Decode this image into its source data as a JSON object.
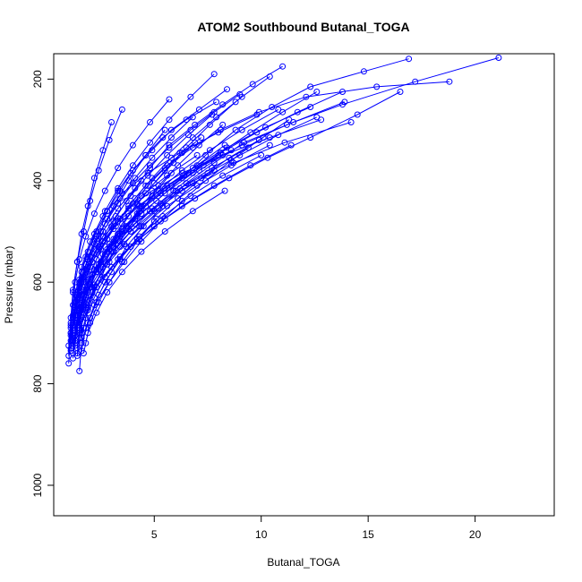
{
  "chart_data": {
    "type": "line",
    "title": "ATOM2 Southbound Butanal_TOGA",
    "xlabel": "Butanal_TOGA",
    "ylabel": "Pressure (mbar)",
    "xlim": [
      0.3,
      23.7
    ],
    "ylim": [
      1060,
      150
    ],
    "y_reversed": true,
    "x_ticks": [
      5,
      10,
      15,
      20
    ],
    "y_ticks": [
      200,
      400,
      600,
      800,
      1000
    ],
    "grid": false,
    "legend": "none",
    "marker": "open-circle",
    "series_color": "#0000ff",
    "series": [
      {
        "x": [
          1.2,
          1.3,
          1.6,
          2.1,
          2.9,
          3.4,
          4.2,
          5.1,
          6.3,
          7.4,
          8.8,
          10.5,
          12.3,
          14.8,
          16.9
        ],
        "y": [
          750,
          705,
          660,
          610,
          560,
          505,
          470,
          440,
          395,
          350,
          300,
          255,
          215,
          185,
          160
        ]
      },
      {
        "x": [
          1.1,
          1.2,
          1.5,
          1.7,
          2.2,
          2.6,
          3.3,
          4.1,
          4.8,
          5.7,
          6.9,
          8.2,
          9.6,
          11.0
        ],
        "y": [
          735,
          690,
          640,
          595,
          545,
          500,
          455,
          415,
          375,
          330,
          290,
          250,
          210,
          175
        ]
      },
      {
        "x": [
          1.3,
          1.4,
          1.8,
          2.0,
          2.5,
          3.1,
          3.8,
          4.6,
          5.6,
          6.8,
          8.1,
          9.9,
          12.1,
          15.4,
          18.8
        ],
        "y": [
          720,
          680,
          630,
          585,
          535,
          495,
          450,
          410,
          370,
          335,
          300,
          265,
          235,
          215,
          205
        ]
      },
      {
        "x": [
          1.0,
          1.1,
          1.3,
          1.6,
          1.9,
          2.3,
          2.8,
          3.4,
          4.0,
          4.9,
          5.8,
          7.1,
          8.4
        ],
        "y": [
          760,
          700,
          650,
          600,
          550,
          510,
          460,
          420,
          380,
          340,
          300,
          260,
          220
        ]
      },
      {
        "x": [
          1.5,
          1.6,
          2.0,
          2.4,
          3.0,
          3.7,
          4.5,
          5.4,
          6.5,
          7.8,
          9.2,
          11.5,
          13.8,
          17.2,
          21.1
        ],
        "y": [
          775,
          720,
          670,
          625,
          580,
          530,
          490,
          450,
          405,
          365,
          325,
          285,
          250,
          205,
          158
        ]
      },
      {
        "x": [
          1.2,
          1.4,
          1.7,
          2.1,
          2.7,
          3.3,
          4.0,
          4.7,
          5.5,
          6.3,
          7.2
        ],
        "y": [
          690,
          645,
          600,
          560,
          520,
          480,
          445,
          410,
          375,
          345,
          315
        ]
      },
      {
        "x": [
          1.1,
          1.3,
          1.6,
          2.0,
          2.6,
          3.5,
          4.7,
          6.2,
          8.0,
          9.8
        ],
        "y": [
          685,
          625,
          570,
          520,
          470,
          425,
          385,
          345,
          305,
          270
        ]
      },
      {
        "x": [
          1.4,
          1.5,
          1.9,
          2.2,
          2.8,
          3.6,
          4.3,
          5.2,
          6.0,
          7.5,
          9.0,
          10.8,
          12.6
        ],
        "y": [
          740,
          695,
          650,
          605,
          565,
          525,
          490,
          455,
          420,
          385,
          350,
          310,
          275
        ]
      },
      {
        "x": [
          1.0,
          1.1,
          1.2,
          1.4,
          1.7,
          2.0,
          2.4,
          2.9,
          3.5
        ],
        "y": [
          745,
          680,
          620,
          560,
          500,
          440,
          380,
          320,
          260
        ]
      },
      {
        "x": [
          1.3,
          1.5,
          1.8,
          2.3,
          2.9,
          3.7,
          4.6,
          5.8,
          7.3,
          9.1,
          11.2,
          13.9
        ],
        "y": [
          700,
          655,
          615,
          575,
          530,
          490,
          450,
          410,
          370,
          330,
          290,
          245
        ]
      },
      {
        "x": [
          1.6,
          1.8,
          2.2,
          2.7,
          3.4,
          4.2,
          5.1,
          6.1,
          7.2,
          8.5,
          10.1
        ],
        "y": [
          735,
          690,
          645,
          600,
          555,
          515,
          475,
          435,
          395,
          355,
          315
        ]
      },
      {
        "x": [
          1.1,
          1.2,
          1.4,
          1.6,
          1.9,
          2.3,
          2.8,
          3.3,
          3.9,
          4.6,
          5.4,
          6.5,
          7.9
        ],
        "y": [
          715,
          670,
          625,
          580,
          540,
          500,
          460,
          420,
          385,
          350,
          315,
          280,
          245
        ]
      },
      {
        "x": [
          1.2,
          1.3,
          1.5,
          1.9,
          2.4,
          3.0,
          3.8,
          4.9,
          6.3,
          8.2,
          10.4,
          12.8
        ],
        "y": [
          690,
          650,
          610,
          570,
          530,
          490,
          455,
          420,
          385,
          350,
          315,
          280
        ]
      },
      {
        "x": [
          1.5,
          1.7,
          2.1,
          2.5,
          3.1,
          3.9,
          4.8,
          5.9,
          7.1,
          8.6
        ],
        "y": [
          710,
          665,
          620,
          580,
          540,
          500,
          460,
          420,
          380,
          340
        ]
      },
      {
        "x": [
          1.3,
          1.4,
          1.7,
          2.0,
          2.5,
          3.2,
          4.1,
          5.3,
          6.8,
          8.7,
          11.1,
          14.2
        ],
        "y": [
          725,
          685,
          645,
          605,
          565,
          525,
          485,
          445,
          405,
          365,
          325,
          285
        ]
      },
      {
        "x": [
          1.4,
          1.5,
          1.8,
          2.1,
          2.6,
          3.1,
          3.7,
          4.4
        ],
        "y": [
          680,
          640,
          600,
          560,
          520,
          480,
          440,
          400
        ]
      },
      {
        "x": [
          1.2,
          1.4,
          1.8,
          2.4,
          3.2,
          4.3,
          5.6,
          7.0,
          8.3
        ],
        "y": [
          665,
          620,
          575,
          530,
          490,
          450,
          410,
          370,
          330
        ]
      },
      {
        "x": [
          1.1,
          1.3,
          1.6,
          2.1,
          2.7,
          3.5,
          4.4,
          5.5,
          6.8,
          8.1,
          9.5,
          11.0,
          12.6
        ],
        "y": [
          705,
          665,
          625,
          585,
          545,
          505,
          465,
          425,
          385,
          345,
          305,
          265,
          225
        ]
      },
      {
        "x": [
          1.3,
          1.5,
          1.9,
          2.6,
          3.6,
          4.9,
          6.4,
          8.0
        ],
        "y": [
          650,
          600,
          555,
          510,
          470,
          430,
          390,
          350
        ]
      },
      {
        "x": [
          1.6,
          1.9,
          2.3,
          2.9,
          3.6,
          4.4,
          5.3,
          6.3,
          7.4,
          8.6,
          9.9,
          11.3
        ],
        "y": [
          720,
          680,
          640,
          600,
          560,
          520,
          480,
          440,
          400,
          360,
          320,
          280
        ]
      },
      {
        "x": [
          1.2,
          1.3,
          1.5,
          1.8,
          2.2,
          2.7,
          3.3,
          4.0,
          4.8,
          5.7,
          6.7,
          7.8,
          9.0
        ],
        "y": [
          695,
          650,
          605,
          565,
          525,
          485,
          445,
          405,
          370,
          335,
          300,
          265,
          230
        ]
      },
      {
        "x": [
          1.4,
          1.6,
          2.0,
          2.6,
          3.4,
          4.4,
          5.6,
          7.0,
          8.6,
          10.4
        ],
        "y": [
          690,
          650,
          610,
          570,
          530,
          490,
          450,
          410,
          370,
          330
        ]
      },
      {
        "x": [
          1.1,
          1.2,
          1.5,
          2.0,
          2.6,
          3.4,
          4.4,
          5.6,
          7.0
        ],
        "y": [
          730,
          675,
          620,
          570,
          520,
          475,
          430,
          390,
          350
        ]
      },
      {
        "x": [
          1.5,
          1.6,
          1.9,
          2.3,
          2.8,
          3.5,
          4.3,
          5.2,
          6.3,
          7.6,
          9.1,
          10.8
        ],
        "y": [
          700,
          660,
          620,
          580,
          540,
          500,
          460,
          420,
          380,
          340,
          300,
          260
        ]
      },
      {
        "x": [
          1.3,
          1.4,
          1.6,
          1.9,
          2.3,
          2.8,
          3.4,
          4.1,
          4.9,
          5.8,
          6.8
        ],
        "y": [
          675,
          635,
          595,
          555,
          515,
          475,
          435,
          395,
          355,
          315,
          275
        ]
      },
      {
        "x": [
          1.2,
          1.5,
          1.9,
          2.5,
          3.3,
          4.3,
          5.5,
          6.9,
          8.5,
          10.3,
          12.3,
          14.5,
          16.5
        ],
        "y": [
          715,
          675,
          635,
          595,
          555,
          515,
          475,
          435,
          395,
          355,
          315,
          270,
          225
        ]
      },
      {
        "x": [
          1.7,
          1.9,
          2.3,
          2.8,
          3.5,
          4.4,
          5.5,
          6.8,
          8.3
        ],
        "y": [
          740,
          700,
          660,
          620,
          580,
          540,
          500,
          460,
          420
        ]
      },
      {
        "x": [
          1.1,
          1.2,
          1.3,
          1.5,
          1.8,
          2.2,
          2.7,
          3.3,
          4.0,
          4.8,
          5.7
        ],
        "y": [
          690,
          645,
          600,
          555,
          510,
          465,
          420,
          375,
          330,
          285,
          240
        ]
      },
      {
        "x": [
          1.4,
          1.7,
          2.2,
          2.9,
          3.8,
          4.9,
          6.2,
          7.7,
          9.4
        ],
        "y": [
          655,
          615,
          575,
          535,
          495,
          455,
          415,
          375,
          335
        ]
      },
      {
        "x": [
          1.3,
          1.4,
          1.7,
          2.1,
          2.6,
          3.3,
          4.2,
          5.3,
          6.6,
          8.1,
          9.8,
          11.7,
          13.8
        ],
        "y": [
          705,
          665,
          625,
          585,
          545,
          505,
          465,
          425,
          385,
          345,
          305,
          265,
          225
        ]
      },
      {
        "x": [
          1.8,
          2.0,
          2.4,
          2.9,
          3.5,
          4.2,
          5.0
        ],
        "y": [
          720,
          680,
          640,
          600,
          560,
          520,
          480
        ]
      },
      {
        "x": [
          1.2,
          1.3,
          1.6,
          2.0,
          2.5,
          3.1,
          3.8,
          4.6,
          5.5,
          6.5,
          7.6,
          8.8
        ],
        "y": [
          740,
          695,
          650,
          605,
          560,
          515,
          470,
          425,
          380,
          335,
          290,
          245
        ]
      },
      {
        "x": [
          1.5,
          1.7,
          2.0,
          2.4,
          2.9,
          3.5,
          4.2,
          5.0,
          5.9,
          6.9
        ],
        "y": [
          685,
          645,
          605,
          565,
          525,
          485,
          445,
          405,
          365,
          325
        ]
      },
      {
        "x": [
          1.0,
          1.1,
          1.2,
          1.4,
          1.6,
          1.9,
          2.2,
          2.6,
          3.0
        ],
        "y": [
          725,
          670,
          615,
          560,
          505,
          450,
          395,
          340,
          285
        ]
      },
      {
        "x": [
          1.3,
          1.5,
          1.8,
          2.2,
          2.8,
          3.5,
          4.4,
          5.5,
          6.8,
          8.4,
          10.2,
          12.3
        ],
        "y": [
          695,
          655,
          615,
          575,
          535,
          495,
          455,
          415,
          375,
          335,
          295,
          255
        ]
      },
      {
        "x": [
          1.6,
          1.8,
          2.2,
          2.7,
          3.4,
          4.3,
          5.4,
          6.7,
          8.2,
          10.0
        ],
        "y": [
          710,
          670,
          630,
          590,
          550,
          510,
          470,
          430,
          390,
          350
        ]
      },
      {
        "x": [
          1.2,
          1.4,
          1.7,
          2.1,
          2.6,
          3.2,
          3.9,
          4.7,
          5.6,
          6.6,
          7.7
        ],
        "y": [
          670,
          630,
          590,
          550,
          510,
          470,
          430,
          390,
          350,
          310,
          270
        ]
      },
      {
        "x": [
          1.4,
          1.5,
          1.8,
          2.3,
          3.0,
          3.9,
          5.0,
          6.3,
          7.8,
          9.5,
          11.4
        ],
        "y": [
          730,
          690,
          650,
          610,
          570,
          530,
          490,
          450,
          410,
          370,
          330
        ]
      },
      {
        "x": [
          1.1,
          1.3,
          1.6,
          2.0,
          2.5,
          3.1,
          3.8,
          4.6,
          5.5
        ],
        "y": [
          700,
          650,
          600,
          550,
          500,
          450,
          400,
          350,
          300
        ]
      },
      {
        "x": [
          1.5,
          1.8,
          2.3,
          3.0,
          3.9,
          5.0,
          6.3,
          7.8
        ],
        "y": [
          660,
          620,
          580,
          540,
          500,
          460,
          420,
          380
        ]
      },
      {
        "x": [
          1.3,
          1.4,
          1.6,
          1.9,
          2.3,
          2.8,
          3.4,
          4.1,
          4.9,
          5.8,
          6.8,
          7.9,
          9.1,
          10.4
        ],
        "y": [
          715,
          675,
          635,
          595,
          555,
          515,
          475,
          435,
          395,
          355,
          315,
          275,
          235,
          195
        ]
      },
      {
        "x": [
          1.7,
          1.9,
          2.2,
          2.6,
          3.1,
          3.7,
          4.4,
          5.2,
          6.1,
          7.1,
          8.2
        ],
        "y": [
          690,
          650,
          610,
          570,
          530,
          490,
          450,
          410,
          370,
          330,
          290
        ]
      },
      {
        "x": [
          1.2,
          1.3,
          1.5,
          1.8,
          2.2,
          2.7,
          3.3,
          4.0,
          4.8,
          5.7,
          6.7,
          7.8
        ],
        "y": [
          685,
          640,
          595,
          550,
          505,
          460,
          415,
          370,
          325,
          280,
          235,
          190
        ]
      },
      {
        "x": [
          1.4,
          1.6,
          1.9,
          2.3,
          2.8,
          3.4,
          4.1,
          4.9,
          5.8
        ],
        "y": [
          745,
          700,
          655,
          610,
          565,
          520,
          475,
          430,
          385
        ]
      }
    ]
  }
}
